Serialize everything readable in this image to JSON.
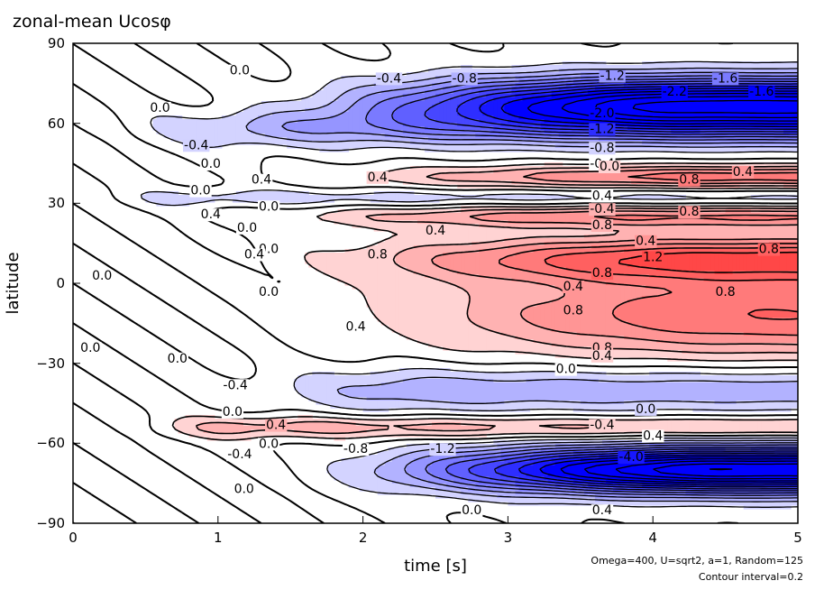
{
  "chart_data": {
    "type": "contour",
    "title": "zonal-mean Ucosφ",
    "xlabel": "time [s]",
    "ylabel": "latitude",
    "xlim": [
      0,
      5
    ],
    "ylim": [
      -90,
      90
    ],
    "x_ticks": [
      "0",
      "1",
      "2",
      "3",
      "4",
      "5"
    ],
    "y_ticks": [
      "90",
      "60",
      "30",
      "0",
      "−30",
      "−60",
      "−90"
    ],
    "contour_interval": 0.2,
    "footnote_line1": "Omega=400, U=sqrt2, a=1, Random=125",
    "footnote_line2": "Contour interval=0.2",
    "colors": {
      "negative": "#0000ff",
      "positive": "#ff0000",
      "zero": "#ffffff"
    },
    "bands": [
      {
        "lat": 67,
        "sigma_lat": 7,
        "amp": -2.6,
        "t_start": 1.0,
        "t_full": 4.3
      },
      {
        "lat": 58,
        "sigma_lat": 5,
        "amp": -0.5,
        "t_start": 0.0,
        "t_full": 1.5
      },
      {
        "lat": 40,
        "sigma_lat": 3,
        "amp": 0.9,
        "t_start": 0.8,
        "t_full": 4.5
      },
      {
        "lat": 32,
        "sigma_lat": 2.5,
        "amp": -0.3,
        "t_start": 0.0,
        "t_full": 1.0
      },
      {
        "lat": 25,
        "sigma_lat": 3,
        "amp": 0.8,
        "t_start": 0.3,
        "t_full": 4.0
      },
      {
        "lat": 9,
        "sigma_lat": 6,
        "amp": 1.2,
        "t_start": 0.8,
        "t_full": 4.5
      },
      {
        "lat": -12,
        "sigma_lat": 11,
        "amp": 1.0,
        "t_start": 1.0,
        "t_full": 4.8
      },
      {
        "lat": -40,
        "sigma_lat": 6,
        "amp": -0.55,
        "t_start": 0.8,
        "t_full": 2.5
      },
      {
        "lat": -54,
        "sigma_lat": 3,
        "amp": 0.5,
        "t_start": 0.3,
        "t_full": 1.2
      },
      {
        "lat": -70,
        "sigma_lat": 6,
        "amp": -2.8,
        "t_start": 1.3,
        "t_full": 4.5
      }
    ],
    "contour_labels": [
      {
        "t": 1.15,
        "lat": 80,
        "text": "0.0"
      },
      {
        "t": 2.18,
        "lat": 77,
        "text": "-0.4"
      },
      {
        "t": 2.7,
        "lat": 77,
        "text": "-0.8"
      },
      {
        "t": 3.72,
        "lat": 78,
        "text": "-1.2"
      },
      {
        "t": 4.5,
        "lat": 77,
        "text": "-1.6"
      },
      {
        "t": 4.15,
        "lat": 72,
        "text": "-2.2"
      },
      {
        "t": 4.75,
        "lat": 72,
        "text": "-1.6"
      },
      {
        "t": 3.65,
        "lat": 64,
        "text": "-2.0"
      },
      {
        "t": 3.65,
        "lat": 58,
        "text": "-1.2"
      },
      {
        "t": 3.65,
        "lat": 51,
        "text": "-0.8"
      },
      {
        "t": 3.65,
        "lat": 45,
        "text": "-0.4"
      },
      {
        "t": 0.6,
        "lat": 66,
        "text": "0.0"
      },
      {
        "t": 0.85,
        "lat": 52,
        "text": "-0.4"
      },
      {
        "t": 0.95,
        "lat": 45,
        "text": "0.0"
      },
      {
        "t": 3.7,
        "lat": 44,
        "text": "0.0"
      },
      {
        "t": 4.62,
        "lat": 42,
        "text": "0.4"
      },
      {
        "t": 1.3,
        "lat": 39,
        "text": "0.4"
      },
      {
        "t": 2.1,
        "lat": 40,
        "text": "0.4"
      },
      {
        "t": 4.25,
        "lat": 39,
        "text": "0.8"
      },
      {
        "t": 0.88,
        "lat": 35,
        "text": "0.0"
      },
      {
        "t": 3.65,
        "lat": 33,
        "text": "0.4"
      },
      {
        "t": 1.35,
        "lat": 29,
        "text": "0.0"
      },
      {
        "t": 3.65,
        "lat": 28,
        "text": "-0.4"
      },
      {
        "t": 4.25,
        "lat": 27,
        "text": "0.8"
      },
      {
        "t": 0.95,
        "lat": 26,
        "text": "0.4"
      },
      {
        "t": 1.2,
        "lat": 21,
        "text": "0.0"
      },
      {
        "t": 2.5,
        "lat": 20,
        "text": "0.4"
      },
      {
        "t": 3.65,
        "lat": 22,
        "text": "0.8"
      },
      {
        "t": 3.95,
        "lat": 16,
        "text": "0.4"
      },
      {
        "t": 1.35,
        "lat": 13,
        "text": "0.0"
      },
      {
        "t": 1.25,
        "lat": 11,
        "text": "0.4"
      },
      {
        "t": 2.1,
        "lat": 11,
        "text": "0.8"
      },
      {
        "t": 4.0,
        "lat": 10,
        "text": "1.2"
      },
      {
        "t": 4.8,
        "lat": 13,
        "text": "0.8"
      },
      {
        "t": 3.65,
        "lat": 4,
        "text": "0.8"
      },
      {
        "t": 0.2,
        "lat": 3,
        "text": "0.0"
      },
      {
        "t": 1.35,
        "lat": -3,
        "text": "0.0"
      },
      {
        "t": 3.45,
        "lat": -1,
        "text": "0.4"
      },
      {
        "t": 4.5,
        "lat": -3,
        "text": "0.8"
      },
      {
        "t": 3.45,
        "lat": -10,
        "text": "0.8"
      },
      {
        "t": 1.95,
        "lat": -16,
        "text": "0.4"
      },
      {
        "t": 0.12,
        "lat": -24,
        "text": "0.0"
      },
      {
        "t": 3.65,
        "lat": -24,
        "text": "0.8"
      },
      {
        "t": 3.65,
        "lat": -27,
        "text": "0.4"
      },
      {
        "t": 0.72,
        "lat": -28,
        "text": "0.0"
      },
      {
        "t": 3.4,
        "lat": -32,
        "text": "0.0"
      },
      {
        "t": 1.12,
        "lat": -38,
        "text": "-0.4"
      },
      {
        "t": 1.1,
        "lat": -48,
        "text": "0.0"
      },
      {
        "t": 3.95,
        "lat": -47,
        "text": "0.0"
      },
      {
        "t": 1.4,
        "lat": -53,
        "text": "0.4"
      },
      {
        "t": 3.65,
        "lat": -53,
        "text": "-0.4"
      },
      {
        "t": 4.0,
        "lat": -57,
        "text": "0.4"
      },
      {
        "t": 1.35,
        "lat": -60,
        "text": "0.0"
      },
      {
        "t": 1.15,
        "lat": -64,
        "text": "-0.4"
      },
      {
        "t": 1.95,
        "lat": -62,
        "text": "-0.8"
      },
      {
        "t": 2.55,
        "lat": -62,
        "text": "-1.2"
      },
      {
        "t": 3.85,
        "lat": -65,
        "text": "-4.0"
      },
      {
        "t": 1.18,
        "lat": -77,
        "text": "0.0"
      },
      {
        "t": 2.75,
        "lat": -85,
        "text": "0.0"
      },
      {
        "t": 3.65,
        "lat": -85,
        "text": "0.4"
      }
    ]
  }
}
